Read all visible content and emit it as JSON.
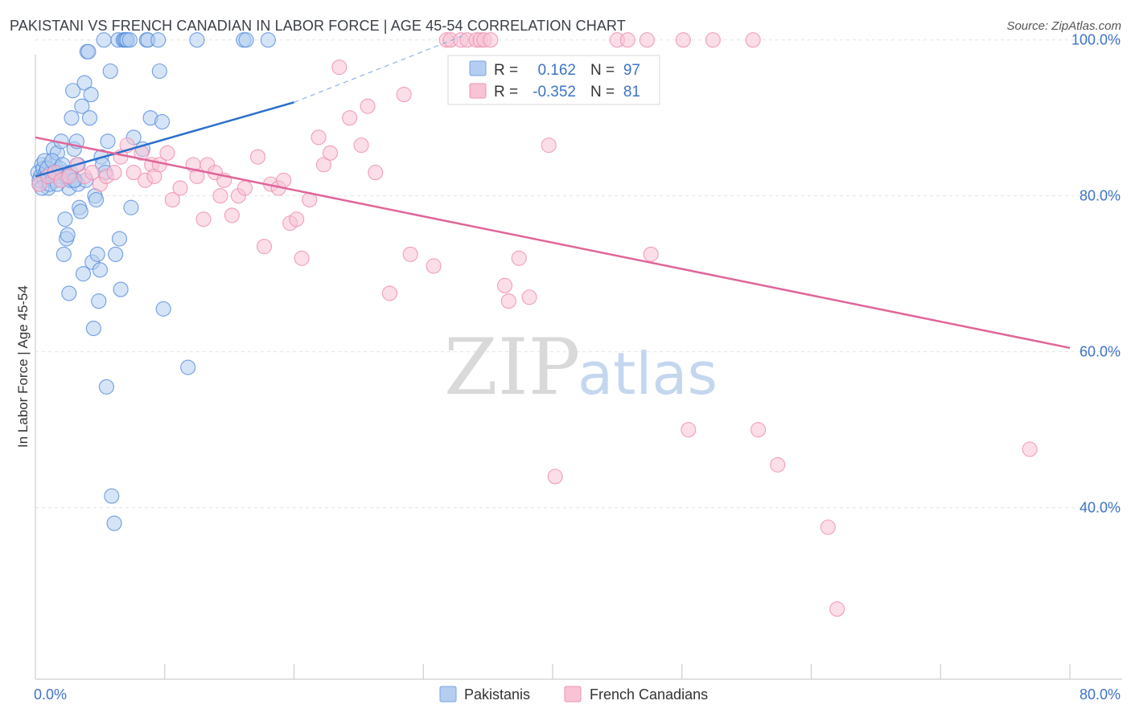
{
  "title": "PAKISTANI VS FRENCH CANADIAN IN LABOR FORCE | AGE 45-54 CORRELATION CHART",
  "source": "Source: ZipAtlas.com",
  "watermark": {
    "zip": "ZIP",
    "atlas": "atlas"
  },
  "chart_data": {
    "type": "scatter",
    "ylabel": "In Labor Force | Age 45-54",
    "xlim": [
      0,
      80
    ],
    "ylim": [
      18,
      101
    ],
    "x_tick_labels": [
      {
        "v": 0,
        "label": "0.0%"
      },
      {
        "v": 80,
        "label": "80.0%"
      }
    ],
    "y_tick_labels": [
      {
        "v": 100,
        "label": "100.0%"
      },
      {
        "v": 80,
        "label": "80.0%"
      },
      {
        "v": 60,
        "label": "60.0%"
      },
      {
        "v": 40,
        "label": "40.0%"
      }
    ],
    "colors": {
      "pakistanis": "#5b8fdd",
      "pakistanis_line": "#2a6fcc",
      "french": "#ee8fb0",
      "french_line": "#e0659a",
      "pak_fill": "#b5cdf0",
      "fr_fill": "#f8c3d5"
    },
    "stats": [
      {
        "r_label": "R =",
        "r": "0.162",
        "n_label": "N =",
        "n": "97"
      },
      {
        "r_label": "R =",
        "r": "-0.352",
        "n_label": "N =",
        "n": "81"
      }
    ],
    "series": [
      {
        "name": "Pakistanis",
        "trend": {
          "x0": 0,
          "y0": 82.5,
          "x1": 20,
          "y1": 92.0,
          "dash_to_x": 33,
          "dash_to_y": 100.5
        },
        "points": [
          [
            0.2,
            83
          ],
          [
            0.3,
            81.5
          ],
          [
            0.4,
            82.5
          ],
          [
            0.5,
            84
          ],
          [
            0.6,
            83.5
          ],
          [
            0.7,
            82
          ],
          [
            0.8,
            83
          ],
          [
            0.9,
            82.5
          ],
          [
            1.0,
            81
          ],
          [
            1.1,
            84
          ],
          [
            1.2,
            83
          ],
          [
            1.3,
            82.5
          ],
          [
            1.4,
            86
          ],
          [
            1.5,
            84
          ],
          [
            1.6,
            82
          ],
          [
            1.7,
            85.5
          ],
          [
            1.8,
            83
          ],
          [
            1.9,
            82.5
          ],
          [
            2.0,
            87
          ],
          [
            2.1,
            83
          ],
          [
            2.3,
            77
          ],
          [
            2.4,
            74.5
          ],
          [
            2.5,
            75
          ],
          [
            2.6,
            81
          ],
          [
            2.7,
            82
          ],
          [
            2.2,
            72.5
          ],
          [
            2.8,
            90
          ],
          [
            2.9,
            93.5
          ],
          [
            3.0,
            86
          ],
          [
            3.1,
            82
          ],
          [
            3.2,
            87
          ],
          [
            3.3,
            81.5
          ],
          [
            3.4,
            78.5
          ],
          [
            3.5,
            78
          ],
          [
            3.6,
            91.5
          ],
          [
            3.7,
            70
          ],
          [
            2.6,
            67.5
          ],
          [
            3.8,
            94.5
          ],
          [
            3.9,
            82
          ],
          [
            4.0,
            98.5
          ],
          [
            4.1,
            98.5
          ],
          [
            4.2,
            90
          ],
          [
            4.3,
            93
          ],
          [
            4.4,
            71.5
          ],
          [
            4.6,
            80
          ],
          [
            4.7,
            79.5
          ],
          [
            4.8,
            72.5
          ],
          [
            4.9,
            66.5
          ],
          [
            4.5,
            63
          ],
          [
            5.0,
            70.5
          ],
          [
            5.1,
            85
          ],
          [
            5.2,
            84
          ],
          [
            5.4,
            83
          ],
          [
            5.5,
            55.5
          ],
          [
            5.3,
            100
          ],
          [
            5.6,
            87
          ],
          [
            5.8,
            96
          ],
          [
            6.2,
            72.5
          ],
          [
            6.4,
            100
          ],
          [
            6.5,
            74.5
          ],
          [
            6.6,
            68
          ],
          [
            6.8,
            100
          ],
          [
            6.9,
            100
          ],
          [
            7.0,
            100
          ],
          [
            7.1,
            100
          ],
          [
            7.3,
            100
          ],
          [
            7.4,
            78.5
          ],
          [
            7.6,
            87.5
          ],
          [
            8.3,
            86
          ],
          [
            8.6,
            100
          ],
          [
            8.7,
            100
          ],
          [
            8.9,
            90
          ],
          [
            9.5,
            100
          ],
          [
            9.6,
            96
          ],
          [
            9.8,
            89.5
          ],
          [
            9.9,
            65.5
          ],
          [
            11.8,
            58
          ],
          [
            12.5,
            100
          ],
          [
            16.1,
            100
          ],
          [
            16.3,
            100
          ],
          [
            18.0,
            100
          ],
          [
            5.9,
            41.5
          ],
          [
            6.1,
            38
          ],
          [
            0.3,
            82
          ],
          [
            0.5,
            81
          ],
          [
            0.7,
            84.5
          ],
          [
            0.9,
            83.5
          ],
          [
            1.1,
            81.5
          ],
          [
            1.3,
            84.5
          ],
          [
            1.5,
            83
          ],
          [
            1.7,
            81.5
          ],
          [
            1.9,
            83.5
          ],
          [
            2.1,
            84
          ],
          [
            2.4,
            82.5
          ],
          [
            2.7,
            83
          ],
          [
            3.0,
            82
          ],
          [
            3.3,
            84
          ]
        ]
      },
      {
        "name": "French Canadians",
        "trend": {
          "x0": 0,
          "y0": 87.5,
          "x1": 80,
          "y1": 60.5
        },
        "points": [
          [
            0.3,
            81.5
          ],
          [
            1.0,
            82.5
          ],
          [
            1.5,
            83
          ],
          [
            2.0,
            82
          ],
          [
            2.6,
            82.5
          ],
          [
            3.2,
            84
          ],
          [
            3.8,
            82.5
          ],
          [
            4.4,
            83
          ],
          [
            5.0,
            81.5
          ],
          [
            5.5,
            82.5
          ],
          [
            6.1,
            83
          ],
          [
            6.6,
            85
          ],
          [
            7.1,
            86.5
          ],
          [
            7.6,
            83
          ],
          [
            8.2,
            85.5
          ],
          [
            8.5,
            82
          ],
          [
            9.0,
            84
          ],
          [
            9.2,
            82.5
          ],
          [
            9.6,
            84
          ],
          [
            10.2,
            85.5
          ],
          [
            10.6,
            79.5
          ],
          [
            11.2,
            81
          ],
          [
            12.2,
            84
          ],
          [
            12.5,
            82.5
          ],
          [
            13.0,
            77
          ],
          [
            13.3,
            84
          ],
          [
            13.9,
            83
          ],
          [
            14.3,
            80
          ],
          [
            14.6,
            82
          ],
          [
            15.2,
            77.5
          ],
          [
            15.7,
            80
          ],
          [
            16.2,
            81
          ],
          [
            17.2,
            85
          ],
          [
            17.7,
            73.5
          ],
          [
            18.2,
            81.5
          ],
          [
            18.8,
            81
          ],
          [
            19.2,
            82
          ],
          [
            19.7,
            76.5
          ],
          [
            20.2,
            77
          ],
          [
            20.6,
            72
          ],
          [
            21.2,
            79.5
          ],
          [
            21.9,
            87.5
          ],
          [
            22.3,
            84
          ],
          [
            22.8,
            85.5
          ],
          [
            23.5,
            96.5
          ],
          [
            24.3,
            90
          ],
          [
            25.2,
            86.5
          ],
          [
            25.7,
            91.5
          ],
          [
            26.3,
            83
          ],
          [
            27.4,
            67.5
          ],
          [
            28.5,
            93
          ],
          [
            29.0,
            72.5
          ],
          [
            30.8,
            71
          ],
          [
            31.8,
            100
          ],
          [
            32.1,
            100
          ],
          [
            32.9,
            100
          ],
          [
            33.4,
            100
          ],
          [
            34.1,
            100
          ],
          [
            34.4,
            100
          ],
          [
            34.7,
            100
          ],
          [
            35.2,
            100
          ],
          [
            36.3,
            68.5
          ],
          [
            37.4,
            72
          ],
          [
            38.2,
            67
          ],
          [
            39.1,
            93
          ],
          [
            39.7,
            86.5
          ],
          [
            40.2,
            44
          ],
          [
            45.0,
            100
          ],
          [
            45.8,
            100
          ],
          [
            47.3,
            100
          ],
          [
            47.6,
            72.5
          ],
          [
            50.1,
            100
          ],
          [
            50.5,
            50
          ],
          [
            52.4,
            100
          ],
          [
            55.5,
            100
          ],
          [
            55.9,
            50
          ],
          [
            57.4,
            45.5
          ],
          [
            61.3,
            37.5
          ],
          [
            62.0,
            27
          ],
          [
            76.9,
            47.5
          ],
          [
            36.6,
            66.5
          ]
        ]
      }
    ]
  }
}
